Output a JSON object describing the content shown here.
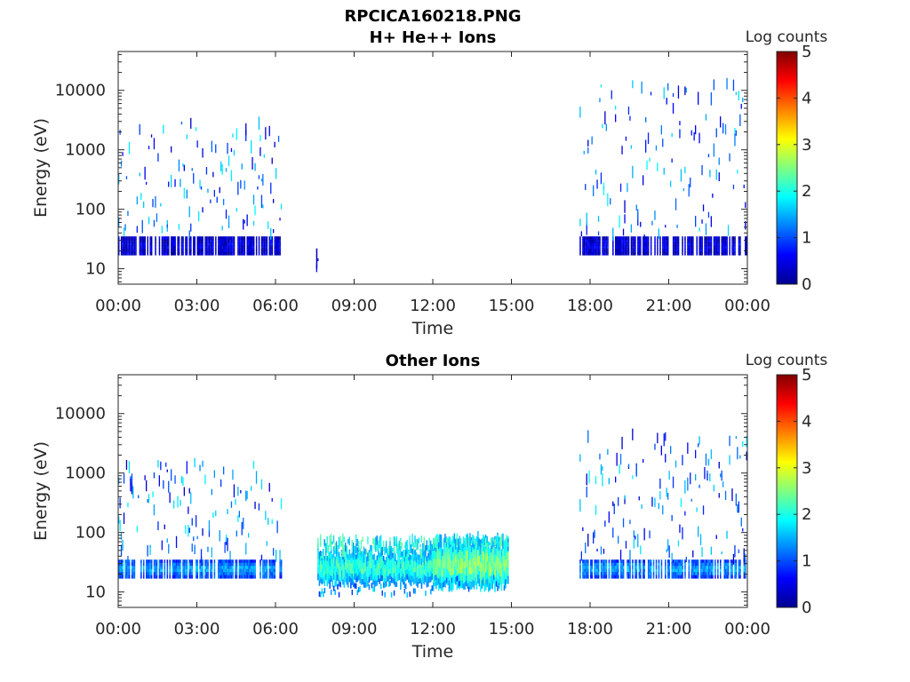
{
  "figure": {
    "filename": "RPCICA160218.PNG"
  },
  "chart_data": [
    {
      "type": "heatmap",
      "title": "H+ He++ Ions",
      "xlabel": "Time",
      "ylabel": "Energy (eV)",
      "x_ticks": [
        "00:00",
        "03:00",
        "06:00",
        "09:00",
        "12:00",
        "15:00",
        "18:00",
        "21:00",
        "00:00"
      ],
      "y_ticks": [
        "10",
        "100",
        "1000",
        "10000"
      ],
      "xlim_hours": [
        0,
        24
      ],
      "ylim_eV": [
        5.5,
        45000
      ],
      "y_scale": "log",
      "colorbar": {
        "label": "Log counts",
        "ticks": [
          "0",
          "1",
          "2",
          "3",
          "4",
          "5"
        ],
        "range": [
          0,
          5
        ],
        "colormap": "jet"
      },
      "intervals": [
        {
          "start_hour": 0.0,
          "end_hour": 6.2,
          "energy_min_eV": 15,
          "energy_max_eV": 3000,
          "typical_log_counts": 0.5,
          "band_min_eV": 17,
          "band_max_eV": 35
        },
        {
          "start_hour": 7.55,
          "end_hour": 7.65,
          "energy_min_eV": 10,
          "energy_max_eV": 22,
          "typical_log_counts": 0.3
        },
        {
          "start_hour": 17.6,
          "end_hour": 24.0,
          "energy_min_eV": 15,
          "energy_max_eV": 13000,
          "typical_log_counts": 0.5,
          "band_min_eV": 17,
          "band_max_eV": 35
        }
      ]
    },
    {
      "type": "heatmap",
      "title": "Other Ions",
      "xlabel": "Time",
      "ylabel": "Energy (eV)",
      "x_ticks": [
        "00:00",
        "03:00",
        "06:00",
        "09:00",
        "12:00",
        "15:00",
        "18:00",
        "21:00",
        "00:00"
      ],
      "y_ticks": [
        "10",
        "100",
        "1000",
        "10000"
      ],
      "xlim_hours": [
        0,
        24
      ],
      "ylim_eV": [
        5.5,
        45000
      ],
      "y_scale": "log",
      "colorbar": {
        "label": "Log counts",
        "ticks": [
          "0",
          "1",
          "2",
          "3",
          "4",
          "5"
        ],
        "range": [
          0,
          5
        ],
        "colormap": "jet"
      },
      "intervals": [
        {
          "start_hour": 0.0,
          "end_hour": 6.2,
          "energy_min_eV": 12,
          "energy_max_eV": 1500,
          "typical_log_counts": 1.5,
          "band_min_eV": 17,
          "band_max_eV": 35
        },
        {
          "start_hour": 7.6,
          "end_hour": 12.0,
          "energy_min_eV": 8,
          "energy_max_eV": 80,
          "typical_log_counts": 2.3,
          "band_min_eV": 14,
          "band_max_eV": 40
        },
        {
          "start_hour": 12.0,
          "end_hour": 14.9,
          "energy_min_eV": 10,
          "energy_max_eV": 80,
          "typical_log_counts": 2.7,
          "band_min_eV": 12,
          "band_max_eV": 60
        },
        {
          "start_hour": 17.6,
          "end_hour": 24.0,
          "energy_min_eV": 12,
          "energy_max_eV": 5000,
          "typical_log_counts": 1.5,
          "band_min_eV": 17,
          "band_max_eV": 35
        }
      ]
    }
  ]
}
